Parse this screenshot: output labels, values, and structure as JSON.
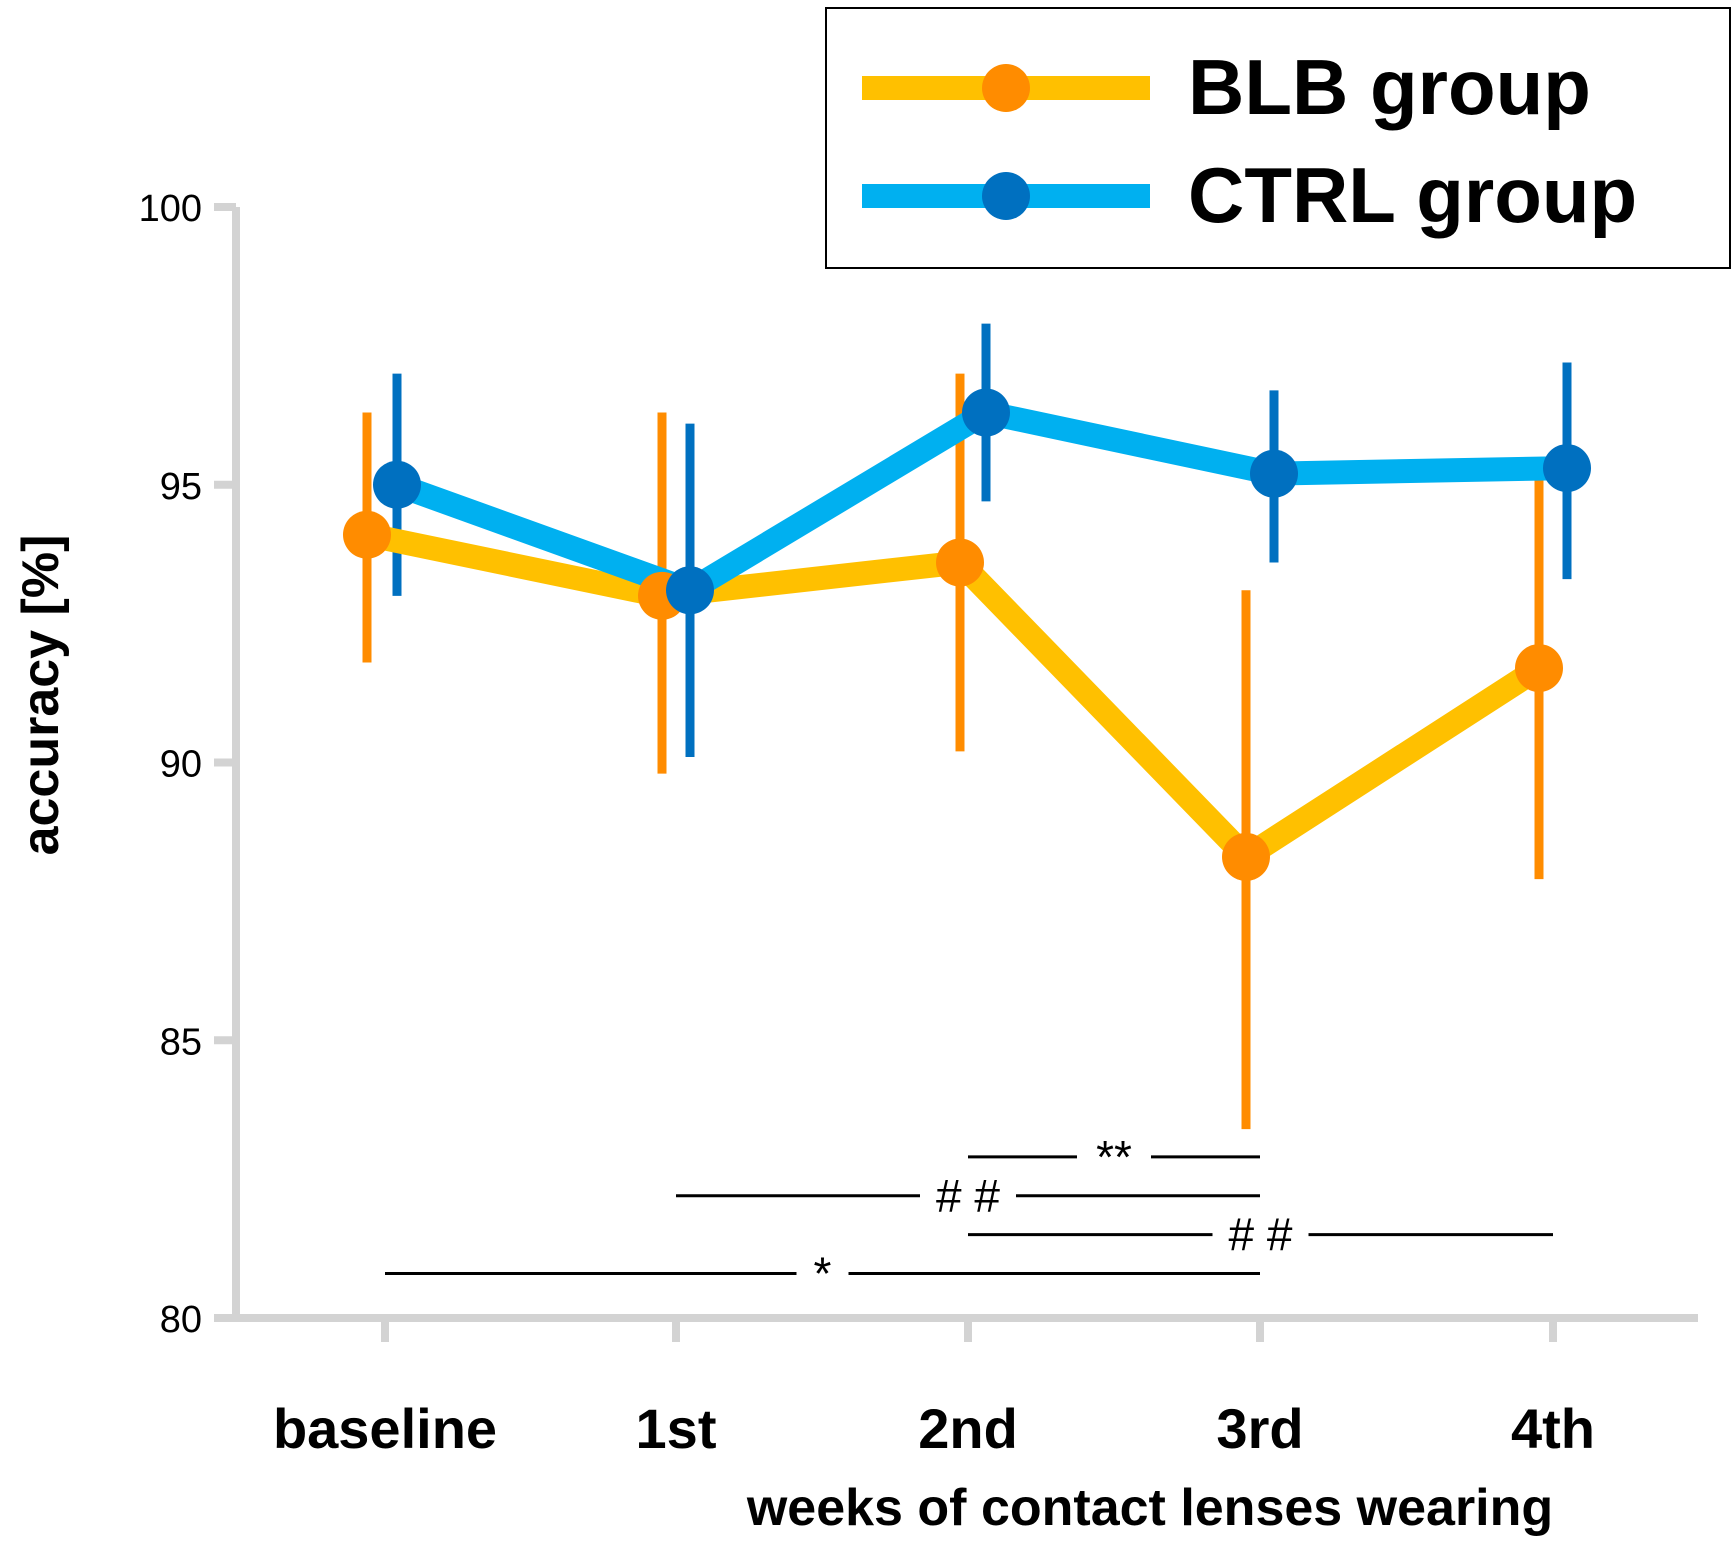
{
  "chart_data": {
    "type": "line",
    "categories": [
      "baseline",
      "1st",
      "2nd",
      "3rd",
      "4th"
    ],
    "xlabel": "weeks of contact lenses wearing",
    "ylabel": "accuracy [%]",
    "ylim": [
      80,
      100
    ],
    "yticks": [
      80,
      85,
      90,
      95,
      100
    ],
    "grid": false,
    "legend_position": "top-right",
    "series": [
      {
        "name": "BLB group",
        "line_color": "#FFC000",
        "marker_color": "#FF8C00",
        "values": [
          94.1,
          93.0,
          93.6,
          88.3,
          91.7
        ],
        "err_low": [
          91.8,
          89.8,
          90.2,
          83.4,
          87.9
        ],
        "err_high": [
          96.3,
          96.3,
          97.0,
          93.1,
          95.1
        ]
      },
      {
        "name": "CTRL group",
        "line_color": "#00B0F0",
        "marker_color": "#0070C0",
        "values": [
          95.0,
          93.1,
          96.3,
          95.2,
          95.3
        ],
        "err_low": [
          93.0,
          90.1,
          94.7,
          93.6,
          93.3
        ],
        "err_high": [
          97.0,
          96.1,
          97.9,
          96.7,
          97.2
        ]
      }
    ],
    "significance": [
      {
        "from": "2nd",
        "to": "3rd",
        "label": "**",
        "y": 82.9
      },
      {
        "from": "1st",
        "to": "3rd",
        "label": "# #",
        "y": 82.2
      },
      {
        "from": "2nd",
        "to": "4th",
        "label": "# #",
        "y": 81.5
      },
      {
        "from": "baseline",
        "to": "3rd",
        "label": "*",
        "y": 80.8
      }
    ]
  }
}
